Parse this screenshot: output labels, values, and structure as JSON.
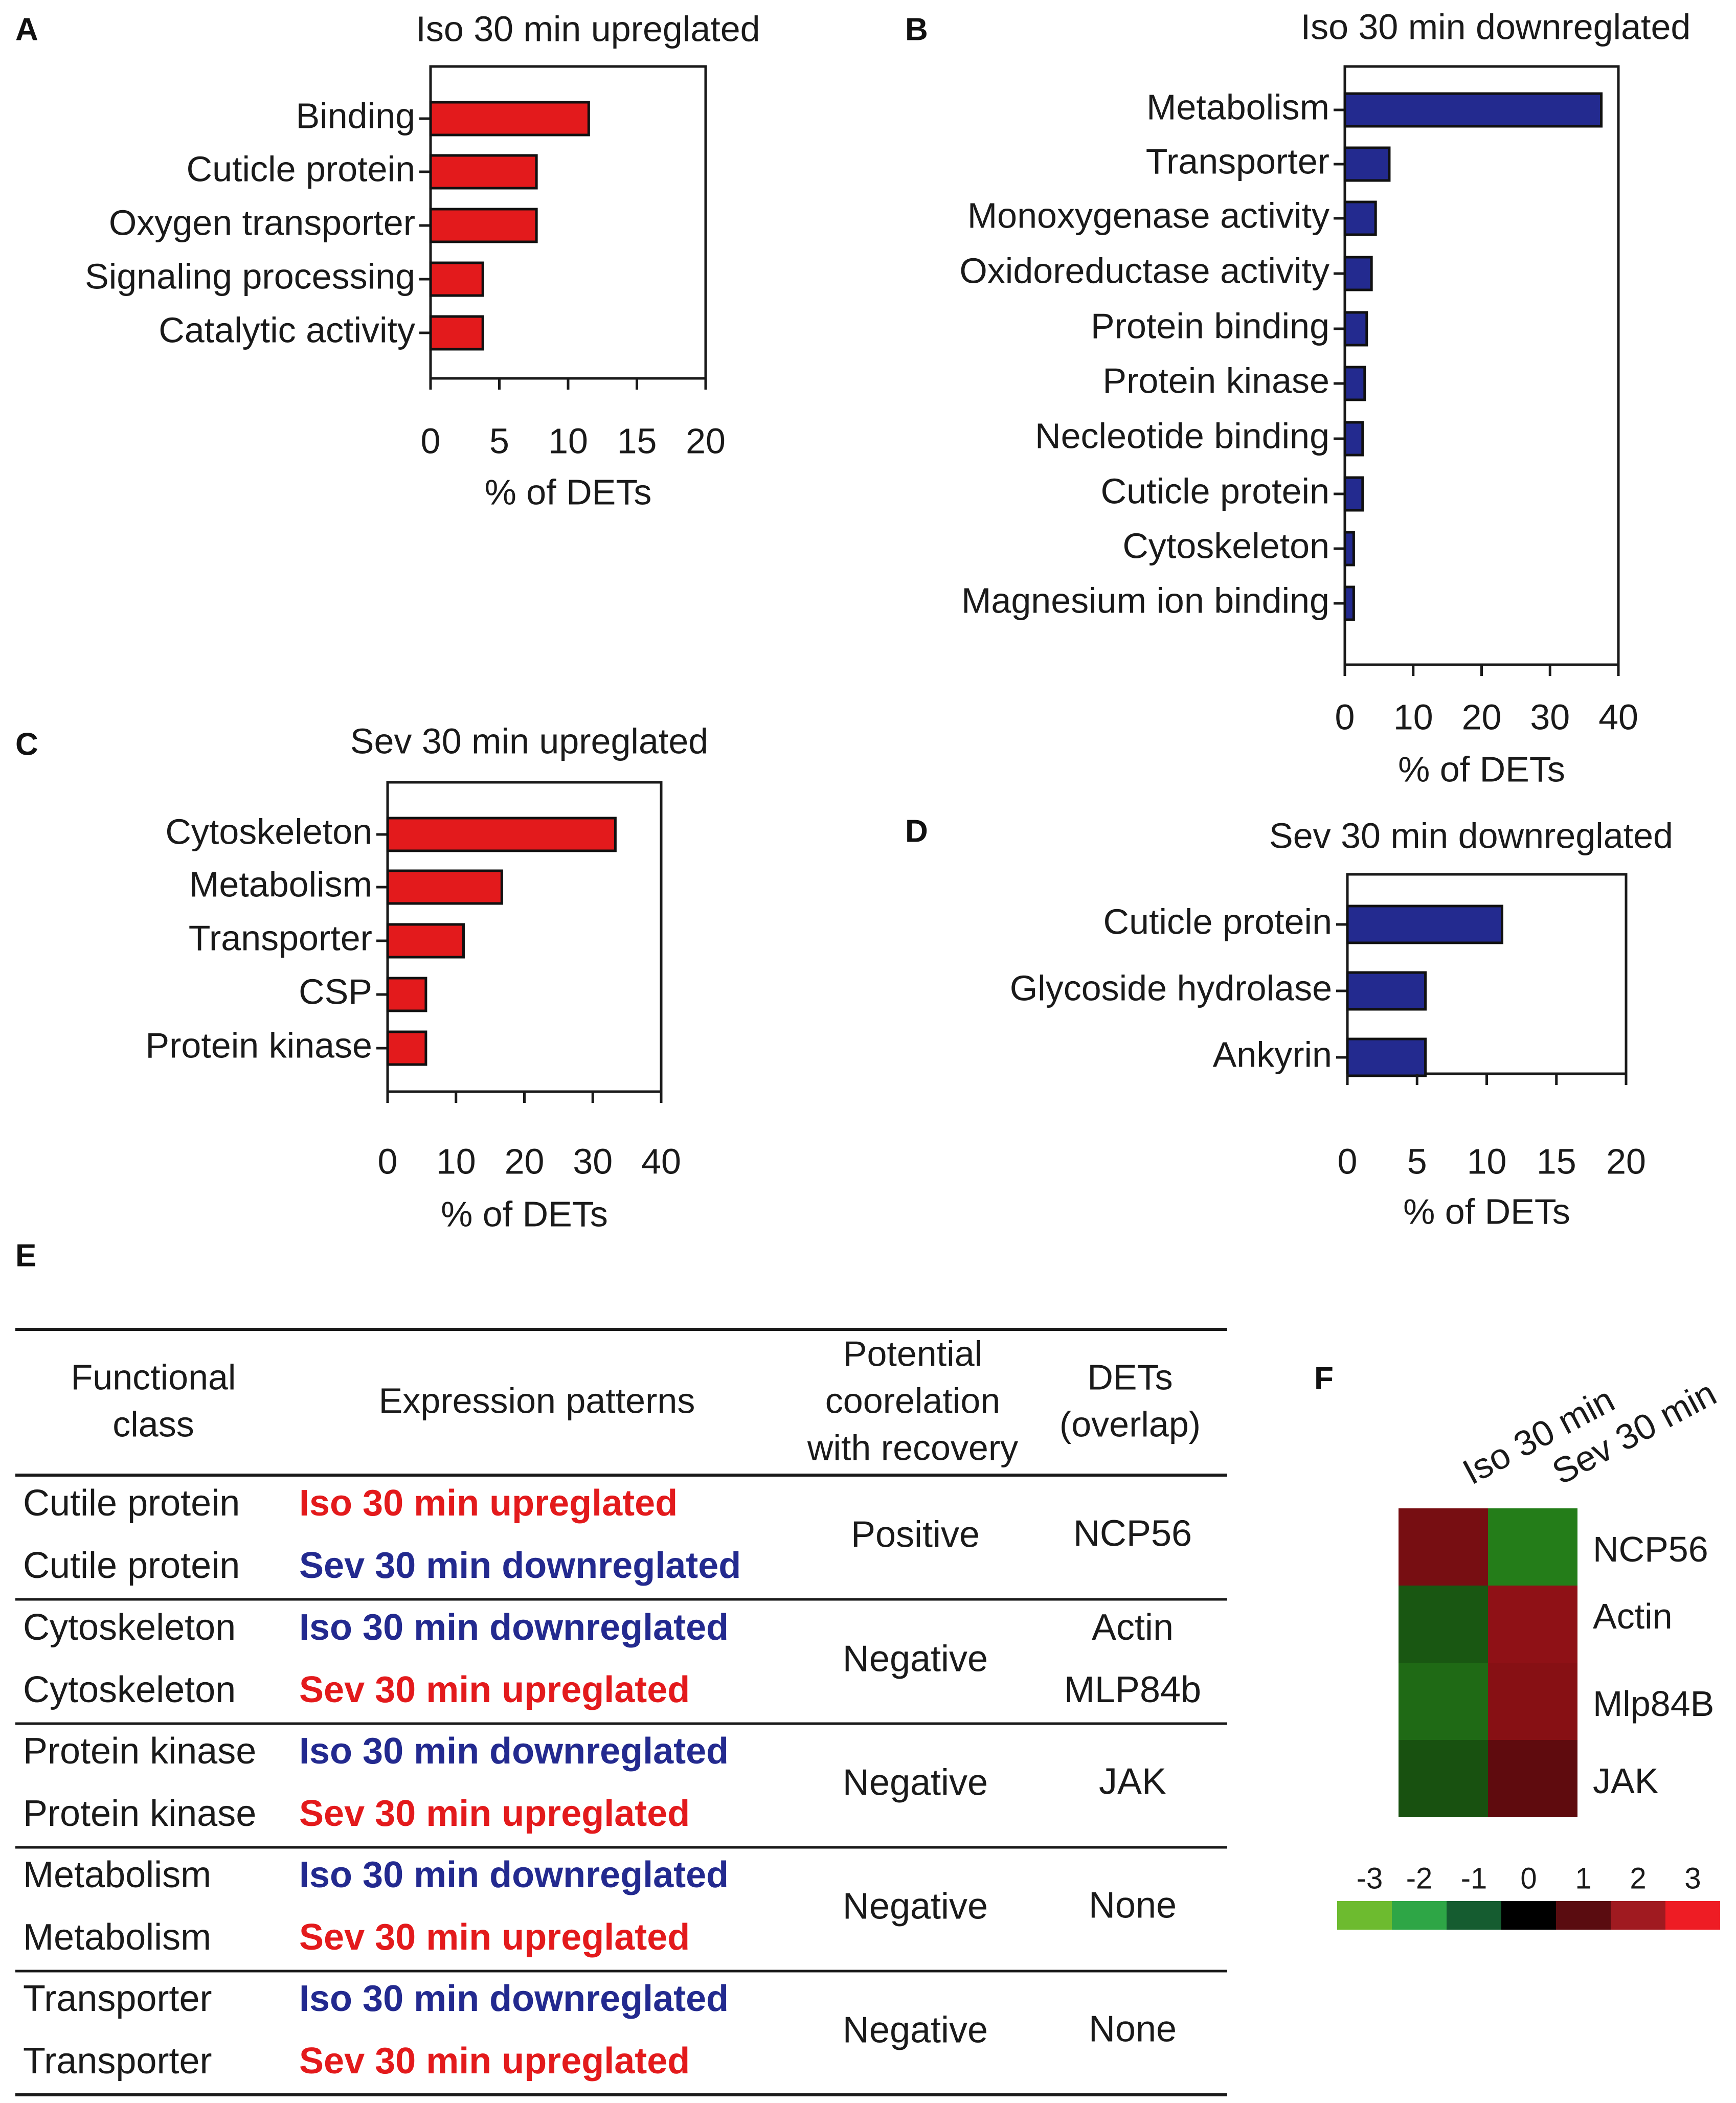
{
  "chart_data": [
    {
      "id": "A",
      "panel_label": "A",
      "type": "bar",
      "orientation": "horizontal",
      "title": "Iso 30 min upreglated",
      "categories": [
        "Binding",
        "Cuticle protein",
        "Oxygen transporter",
        "Signaling processing",
        "Catalytic activity"
      ],
      "values": [
        11.5,
        7.7,
        7.7,
        3.8,
        3.8
      ],
      "xlabel": "% of DETs",
      "xlim": [
        0,
        20
      ],
      "xticks": [
        "0",
        "5",
        "10",
        "15",
        "20"
      ],
      "color": "#e31a1c"
    },
    {
      "id": "B",
      "panel_label": "B",
      "type": "bar",
      "orientation": "horizontal",
      "title": "Iso 30 min downreglated",
      "categories": [
        "Metabolism",
        "Transporter",
        "Monoxygenase activity",
        "Oxidoreductase activity",
        "Protein binding",
        "Protein kinase",
        "Necleotide binding",
        "Cuticle protein",
        "Cytoskeleton",
        "Magnesium ion binding"
      ],
      "values": [
        37.5,
        6.5,
        4.5,
        3.9,
        3.2,
        2.9,
        2.6,
        2.6,
        1.3,
        1.3
      ],
      "xlabel": "% of DETs",
      "xlim": [
        0,
        40
      ],
      "xticks": [
        "0",
        "10",
        "20",
        "30",
        "40"
      ],
      "color": "#232a8f"
    },
    {
      "id": "C",
      "panel_label": "C",
      "type": "bar",
      "orientation": "horizontal",
      "title": "Sev 30 min upreglated",
      "categories": [
        "Cytoskeleton",
        "Metabolism",
        "Transporter",
        "CSP",
        "Protein kinase"
      ],
      "values": [
        33.3,
        16.7,
        11.1,
        5.6,
        5.6
      ],
      "xlabel": "% of DETs",
      "xlim": [
        0,
        40
      ],
      "xticks": [
        "0",
        "10",
        "20",
        "30",
        "40"
      ],
      "color": "#e31a1c"
    },
    {
      "id": "D",
      "panel_label": "D",
      "type": "bar",
      "orientation": "horizontal",
      "title": "Sev 30 min downreglated",
      "categories": [
        "Cuticle protein",
        "Glycoside hydrolase",
        "Ankyrin"
      ],
      "values": [
        11.1,
        5.6,
        5.6
      ],
      "xlabel": "% of DETs",
      "xlim": [
        0,
        20
      ],
      "xticks": [
        "0",
        "5",
        "10",
        "15",
        "20"
      ],
      "color": "#232a8f"
    },
    {
      "id": "E",
      "panel_label": "E",
      "type": "table",
      "headers": [
        "Functional class",
        "Expression patterns",
        "Potential coorelation with recovery",
        "DETs (overlap)"
      ],
      "groups": [
        {
          "rows": [
            {
              "class": "Cutile protein",
              "pattern": "Iso 30 min upreglated",
              "color": "red"
            },
            {
              "class": "Cutile protein",
              "pattern": "Sev 30 min downreglated",
              "color": "blue"
            }
          ],
          "correlation": "Positive",
          "dets": [
            "NCP56"
          ]
        },
        {
          "rows": [
            {
              "class": "Cytoskeleton",
              "pattern": "Iso 30 min downreglated",
              "color": "blue"
            },
            {
              "class": "Cytoskeleton",
              "pattern": "Sev 30 min upreglated",
              "color": "red"
            }
          ],
          "correlation": "Negative",
          "dets": [
            "Actin",
            "MLP84b"
          ]
        },
        {
          "rows": [
            {
              "class": "Protein kinase",
              "pattern": "Iso 30 min downreglated",
              "color": "blue"
            },
            {
              "class": "Protein kinase",
              "pattern": "Sev 30 min upreglated",
              "color": "red"
            }
          ],
          "correlation": "Negative",
          "dets": [
            "JAK"
          ]
        },
        {
          "rows": [
            {
              "class": "Metabolism",
              "pattern": "Iso 30 min downreglated",
              "color": "blue"
            },
            {
              "class": "Metabolism",
              "pattern": "Sev 30 min upreglated",
              "color": "red"
            }
          ],
          "correlation": "Negative",
          "dets": [
            "None"
          ]
        },
        {
          "rows": [
            {
              "class": "Transporter",
              "pattern": "Iso 30 min downreglated",
              "color": "blue"
            },
            {
              "class": "Transporter",
              "pattern": "Sev 30 min upreglated",
              "color": "red"
            }
          ],
          "correlation": "Negative",
          "dets": [
            "None"
          ]
        }
      ]
    },
    {
      "id": "F",
      "panel_label": "F",
      "type": "heatmap",
      "columns": [
        "Iso 30 min",
        "Sev 30 min"
      ],
      "rows": [
        "NCP56",
        "Actin",
        "Mlp84B",
        "JAK"
      ],
      "values": [
        [
          1.5,
          -2.0
        ],
        [
          -1.4,
          1.8
        ],
        [
          -1.7,
          1.7
        ],
        [
          -1.3,
          1.2
        ]
      ],
      "colorbar_ticks": [
        "-3",
        "-2",
        "-1",
        "0",
        "1",
        "2",
        "3"
      ],
      "colorbar_colors": [
        "#6dbb2f",
        "#2ea646",
        "#155c30",
        "#000000",
        "#5a0c10",
        "#a01a20",
        "#ee1c24"
      ]
    }
  ],
  "colors": {
    "text_red": "#e31a1c",
    "text_blue": "#232a8f",
    "axis": "#1a1a1a"
  }
}
